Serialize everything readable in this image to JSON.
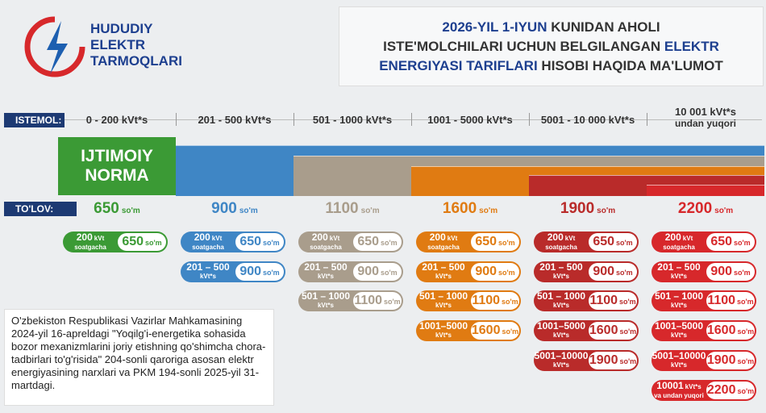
{
  "logo": {
    "lines": [
      "HUDUDIY",
      "ELEKTR",
      "TARMOQLARI"
    ]
  },
  "header": {
    "title_lines": [
      [
        {
          "text": "2026-YIL 1-IYUN",
          "highlight": true
        },
        {
          "text": " KUNIDAN AHOLI",
          "highlight": false
        }
      ],
      [
        {
          "text": "ISTE'MOLCHILARI UCHUN BELGILANGAN ",
          "highlight": false
        },
        {
          "text": "ELEKTR",
          "highlight": true
        }
      ],
      [
        {
          "text": "ENERGIYASI TARIFLARI",
          "highlight": true
        },
        {
          "text": " HISOBI HAQIDA MA'LUMOT",
          "highlight": false
        }
      ]
    ]
  },
  "consumption": {
    "label": "ISTEMOL:",
    "ranges": [
      [
        "0 - 200 kVt*s"
      ],
      [
        "201 - 500 kVt*s"
      ],
      [
        "501 - 1000 kVt*s"
      ],
      [
        "1001 - 5000 kVt*s"
      ],
      [
        "5001 - 10 000 kVt*s"
      ],
      [
        "10 001 kVt*s",
        "undan yuqori"
      ]
    ]
  },
  "norm_label": [
    "IJTIMOIY",
    "NORMA"
  ],
  "payment": {
    "label": "TO'LOV:",
    "unit": "so'm"
  },
  "row_labels": [
    {
      "main": "200",
      "sub": "kVt",
      "note": "soatgacha"
    },
    {
      "main": "201 – 500",
      "note": "kVt*s"
    },
    {
      "main": "501 – 1000",
      "note": "kVt*s"
    },
    {
      "main": "1001–5000",
      "note": "kVt*s"
    },
    {
      "main": "5001–10000",
      "note": "kVt*s"
    },
    {
      "main": "10001",
      "sub": "kVt*s",
      "note": "va undan yuqori"
    }
  ],
  "tiers": [
    {
      "price": "650",
      "color": "#3b9a35",
      "row_prices": [
        "650"
      ]
    },
    {
      "price": "900",
      "color": "#3f86c5",
      "row_prices": [
        "650",
        "900"
      ]
    },
    {
      "price": "1100",
      "color": "#a99d8c",
      "row_prices": [
        "650",
        "900",
        "1100"
      ]
    },
    {
      "price": "1600",
      "color": "#e07b12",
      "row_prices": [
        "650",
        "900",
        "1100",
        "1600"
      ]
    },
    {
      "price": "1900",
      "color": "#b92b2a",
      "row_prices": [
        "650",
        "900",
        "1100",
        "1600",
        "1900"
      ]
    },
    {
      "price": "2200",
      "color": "#d7282b",
      "row_prices": [
        "650",
        "900",
        "1100",
        "1600",
        "1900",
        "2200"
      ]
    }
  ],
  "note": "O'zbekiston Respublikasi Vazirlar Mahkamasining 2024-yil 16-apreldagi \"Yoqilg'i-energetika sohasida bozor mexanizmlarini joriy etishning qo'shimcha chora-tadbirlari to'g'risida\" 204-sonli qaroriga asosan elektr energiyasining narxlari va PKM 194-sonli 2025-yil 31-martdagi."
}
